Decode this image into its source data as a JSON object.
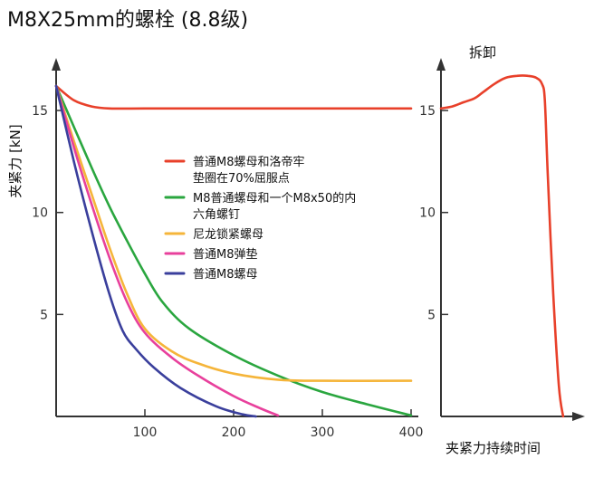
{
  "title": "M8X25mm的螺栓 (8.8级)",
  "chart_data": [
    {
      "type": "line",
      "ylabel": "夹紧力 [kN]",
      "xlabel": "",
      "xlim": [
        0,
        400
      ],
      "ylim": [
        0,
        17
      ],
      "x_ticks": [
        100,
        200,
        300,
        400
      ],
      "y_ticks": [
        5,
        10,
        15
      ],
      "grid": false,
      "legend_position": "center",
      "series": [
        {
          "name": "普通M8螺母和洛帝牢垫圈在70%屈服点",
          "color": "#e8402a",
          "x": [
            0,
            20,
            40,
            60,
            100,
            200,
            300,
            400
          ],
          "y": [
            16.2,
            15.5,
            15.2,
            15.1,
            15.1,
            15.1,
            15.1,
            15.1
          ]
        },
        {
          "name": "M8普通螺母和一个M8x50的内六角螺钉",
          "color": "#2aa63f",
          "x": [
            0,
            20,
            40,
            60,
            80,
            100,
            120,
            150,
            200,
            250,
            300,
            350,
            400
          ],
          "y": [
            16.2,
            14.2,
            12.2,
            10.3,
            8.6,
            7.0,
            5.6,
            4.3,
            3.0,
            2.0,
            1.2,
            0.6,
            0.05
          ]
        },
        {
          "name": "尼龙锁紧螺母",
          "color": "#f5b53a",
          "x": [
            0,
            20,
            40,
            60,
            80,
            100,
            130,
            160,
            200,
            250,
            300,
            400
          ],
          "y": [
            16.2,
            13.5,
            10.9,
            8.3,
            6.0,
            4.3,
            3.2,
            2.6,
            2.1,
            1.8,
            1.75,
            1.75
          ]
        },
        {
          "name": "普通M8弹垫",
          "color": "#e8409c",
          "x": [
            0,
            20,
            40,
            60,
            80,
            100,
            130,
            160,
            200,
            230,
            250
          ],
          "y": [
            16.2,
            13.2,
            10.4,
            7.8,
            5.6,
            4.1,
            2.9,
            2.0,
            1.0,
            0.4,
            0.05
          ]
        },
        {
          "name": "普通M8螺母",
          "color": "#3a3f9c",
          "x": [
            0,
            20,
            40,
            60,
            75,
            90,
            110,
            140,
            180,
            210,
            225
          ],
          "y": [
            16.2,
            12.5,
            9.1,
            6.0,
            4.2,
            3.3,
            2.4,
            1.4,
            0.5,
            0.1,
            0.0
          ]
        }
      ]
    },
    {
      "type": "line",
      "ylabel": "",
      "xlabel": "夹紧力持续时间",
      "title": "拆卸",
      "ylim": [
        0,
        17
      ],
      "y_ticks": [
        5,
        10,
        15
      ],
      "x_ticks": [],
      "grid": false,
      "series": [
        {
          "color": "#e8402a",
          "x": [
            0,
            0.08,
            0.16,
            0.24,
            0.3,
            0.38,
            0.46,
            0.54,
            0.62,
            0.68,
            0.72,
            0.74,
            0.76,
            0.8,
            0.84,
            0.87
          ],
          "y": [
            15.1,
            15.2,
            15.4,
            15.6,
            15.9,
            16.3,
            16.6,
            16.7,
            16.7,
            16.6,
            16.3,
            15.5,
            12.0,
            6.0,
            1.5,
            0.0
          ]
        }
      ]
    }
  ]
}
